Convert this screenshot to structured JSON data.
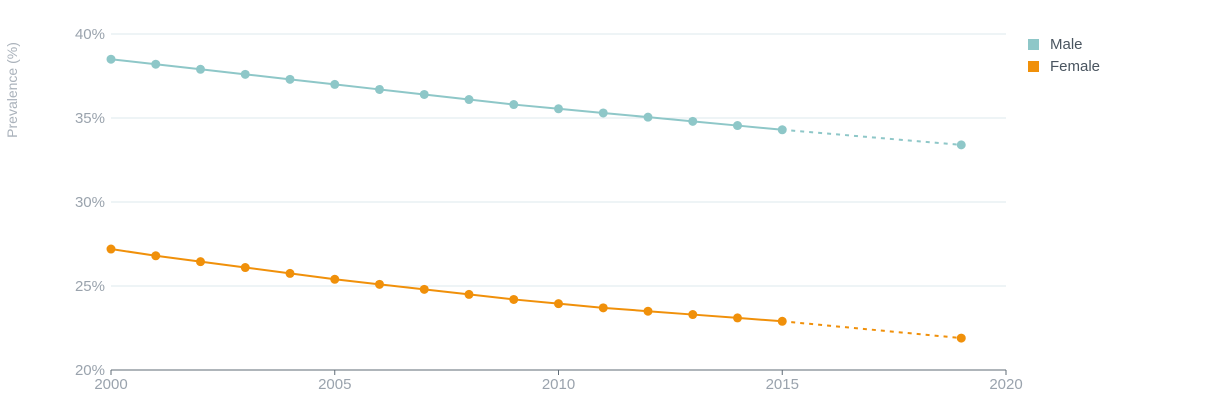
{
  "chart_data": {
    "type": "line",
    "ylabel": "Prevalence (%)",
    "xlim": [
      2000,
      2020
    ],
    "ylim": [
      20,
      40
    ],
    "x_ticks": [
      2000,
      2005,
      2010,
      2015,
      2020
    ],
    "y_ticks": [
      20,
      25,
      30,
      35,
      40
    ],
    "y_tick_labels": [
      "20%",
      "25%",
      "30%",
      "35%",
      "40%"
    ],
    "x_tick_labels": [
      "2000",
      "2005",
      "2010",
      "2015",
      "2020"
    ],
    "grid": "horizontal",
    "legend_position": "top-right",
    "series": [
      {
        "name": "Male",
        "color": "#8ec7c8",
        "x": [
          2000,
          2001,
          2002,
          2003,
          2004,
          2005,
          2006,
          2007,
          2008,
          2009,
          2010,
          2011,
          2012,
          2013,
          2014,
          2015
        ],
        "values": [
          38.5,
          38.2,
          37.9,
          37.6,
          37.3,
          37.0,
          36.7,
          36.4,
          36.1,
          35.8,
          35.55,
          35.3,
          35.05,
          34.8,
          34.55,
          34.3
        ],
        "projection": {
          "x": [
            2015,
            2019
          ],
          "values": [
            34.3,
            33.4
          ]
        }
      },
      {
        "name": "Female",
        "color": "#f0900a",
        "x": [
          2000,
          2001,
          2002,
          2003,
          2004,
          2005,
          2006,
          2007,
          2008,
          2009,
          2010,
          2011,
          2012,
          2013,
          2014,
          2015
        ],
        "values": [
          27.2,
          26.8,
          26.45,
          26.1,
          25.75,
          25.4,
          25.1,
          24.8,
          24.5,
          24.2,
          23.95,
          23.7,
          23.5,
          23.3,
          23.1,
          22.9
        ],
        "projection": {
          "x": [
            2015,
            2019
          ],
          "values": [
            22.9,
            21.9
          ]
        }
      }
    ]
  }
}
